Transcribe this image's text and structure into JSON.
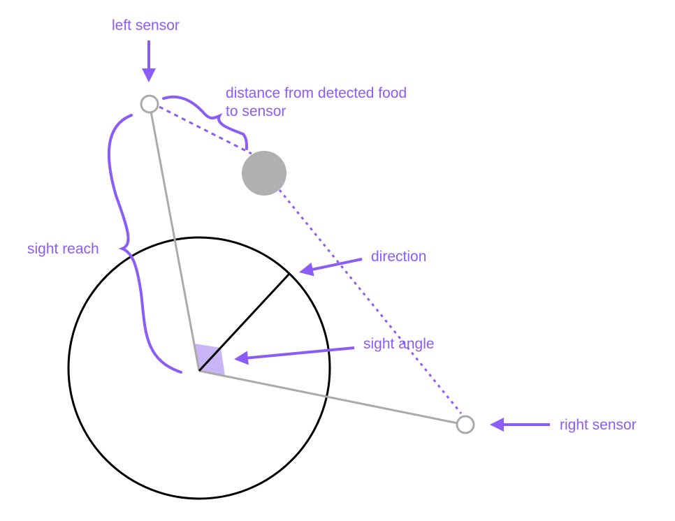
{
  "labels": {
    "left_sensor": "left sensor",
    "distance_line1": "distance from detected food",
    "distance_line2": "to sensor",
    "sight_reach": "sight reach",
    "direction": "direction",
    "sight_angle": "sight angle",
    "right_sensor": "right sensor"
  },
  "colors": {
    "accent": "#8b5cf6",
    "label": "#8b5cf6",
    "body_stroke": "#000000",
    "sensor_line": "#aaaaaa",
    "food": "#b0b0b0",
    "angle_fill": "#c7b5f6"
  }
}
